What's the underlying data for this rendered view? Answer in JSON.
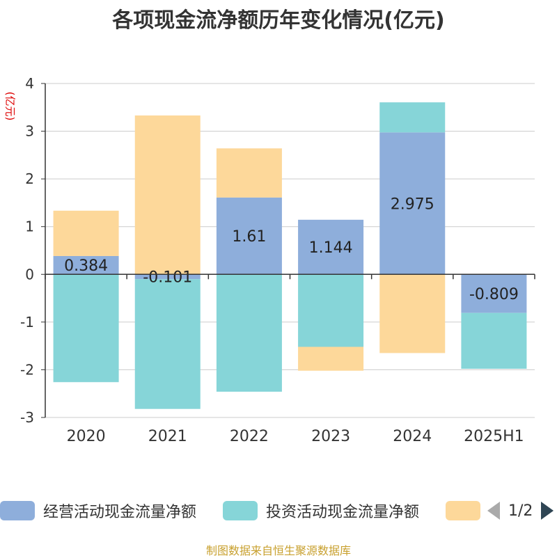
{
  "title": "各项现金流净额历年变化情况(亿元)",
  "source": "制图数据来自恒生聚源数据库",
  "pager": "1/2",
  "chart_data": {
    "type": "bar",
    "stacked": true,
    "title": "各项现金流净额历年变化情况(亿元)",
    "ylabel": "(亿元)",
    "xlabel": "",
    "ylim": [
      -3,
      4
    ],
    "yticks": [
      -3,
      -2,
      -1,
      0,
      1,
      2,
      3,
      4
    ],
    "grid": true,
    "legend_position": "bottom",
    "categories": [
      "2020",
      "2021",
      "2022",
      "2023",
      "2024",
      "2025H1"
    ],
    "series": [
      {
        "name": "经营活动现金流量净额",
        "color": "#8eaedb",
        "values": [
          0.384,
          -0.101,
          1.61,
          1.144,
          2.975,
          -0.809
        ],
        "labels": [
          "0.384",
          "-0.101",
          "1.61",
          "1.144",
          "2.975",
          "-0.809"
        ]
      },
      {
        "name": "投资活动现金流量净额",
        "color": "#86d5d8",
        "values": [
          -2.26,
          -2.72,
          -2.46,
          -1.52,
          0.63,
          -1.17
        ]
      },
      {
        "name": "",
        "color": "#fdd89a",
        "values": [
          0.95,
          3.33,
          1.03,
          -0.5,
          -1.65,
          0
        ]
      }
    ]
  }
}
